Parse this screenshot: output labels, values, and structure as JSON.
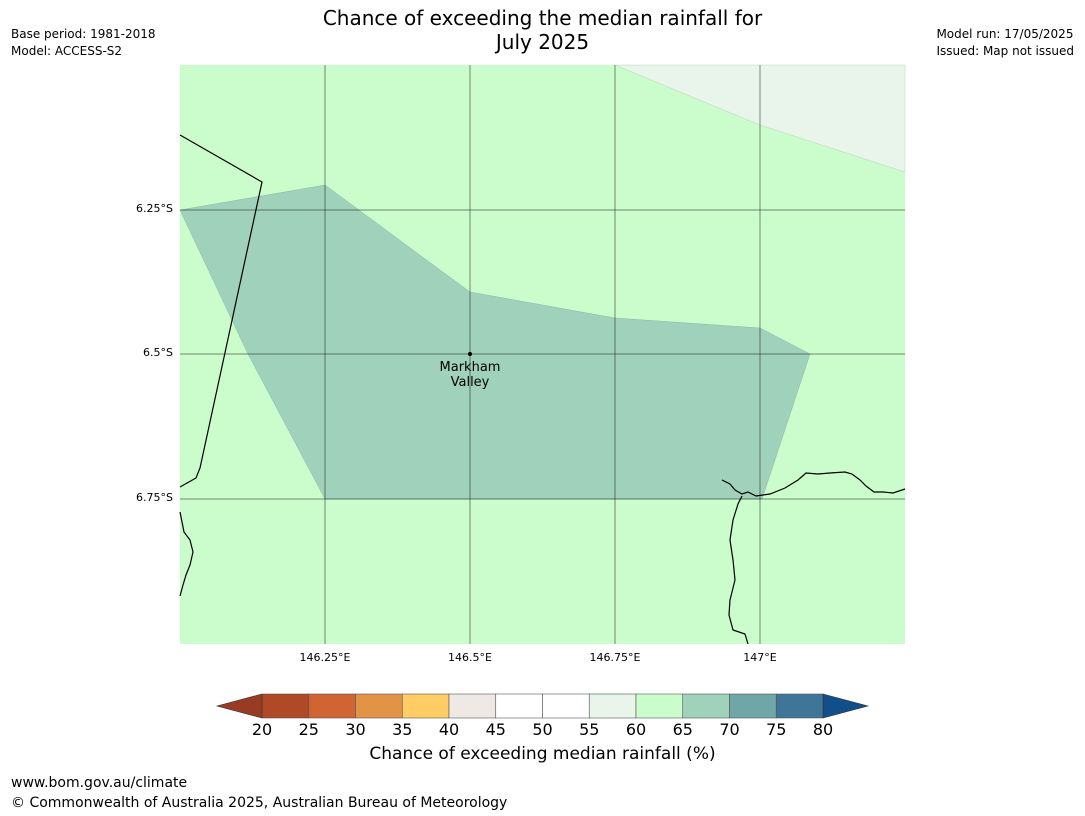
{
  "header": {
    "title_line1": "Chance of exceeding the median rainfall for",
    "title_line2": "July 2025",
    "base_period": "Base period: 1981-2018",
    "model": "Model: ACCESS-S2",
    "model_run": "Model run: 17/05/2025",
    "issued": "Issued: Map not issued"
  },
  "map": {
    "lat_labels": [
      "6.25°S",
      "6.5°S",
      "6.75°S"
    ],
    "lon_labels": [
      "146.25°E",
      "146.5°E",
      "146.75°E",
      "147°E"
    ],
    "place": {
      "name_line1": "Markham",
      "name_line2": "Valley",
      "lat": -6.5,
      "lon": 146.5
    },
    "fill_colors": {
      "class_60_65": "#cbfccb",
      "class_65_70": "#9fd1bb",
      "class_55_60": "#e9f5ea"
    }
  },
  "colorbar": {
    "label": "Chance of exceeding median rainfall (%)",
    "ticks": [
      "20",
      "25",
      "30",
      "35",
      "40",
      "45",
      "50",
      "55",
      "60",
      "65",
      "70",
      "75",
      "80"
    ],
    "colors": [
      "#b04925",
      "#d06433",
      "#e39346",
      "#ffcc66",
      "#efe9e5",
      "#ffffff",
      "#ffffff",
      "#e9f5ea",
      "#cbfccb",
      "#9fd1bb",
      "#6fa6a8",
      "#3f7698"
    ],
    "under_color": "#993a23",
    "over_color": "#114e8a"
  },
  "footer": {
    "url": "www.bom.gov.au/climate",
    "copyright": "© Commonwealth of Australia 2025, Australian Bureau of Meteorology"
  }
}
